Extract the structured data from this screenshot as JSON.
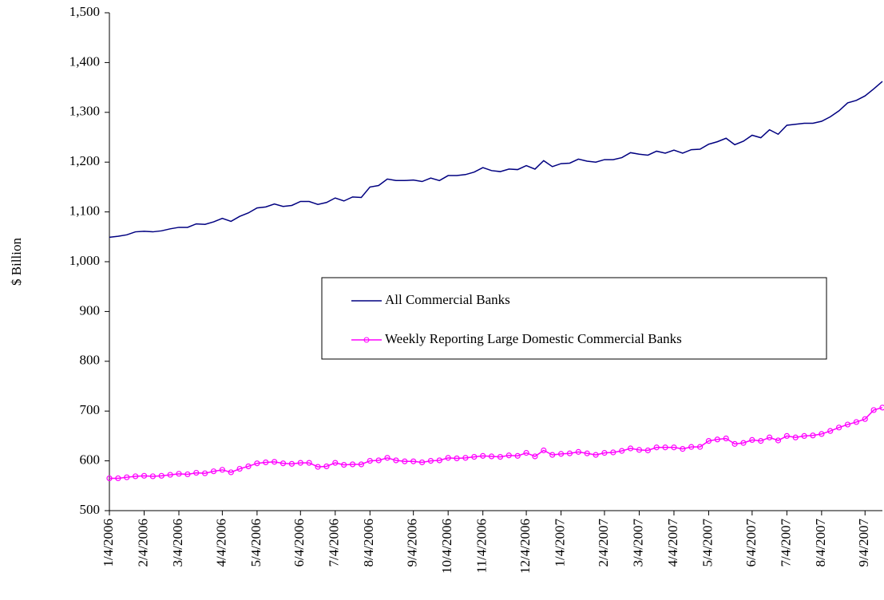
{
  "chart_data": {
    "type": "line",
    "y_label": "$ Billion",
    "categories": [
      "1/4/2006",
      null,
      null,
      null,
      "2/4/2006",
      null,
      null,
      null,
      "3/4/2006",
      null,
      null,
      null,
      null,
      "4/4/2006",
      null,
      null,
      null,
      "5/4/2006",
      null,
      null,
      null,
      null,
      "6/4/2006",
      null,
      null,
      null,
      "7/4/2006",
      null,
      null,
      null,
      "8/4/2006",
      null,
      null,
      null,
      null,
      "9/4/2006",
      null,
      null,
      null,
      "10/4/2006",
      null,
      null,
      null,
      "11/4/2006",
      null,
      null,
      null,
      null,
      "12/4/2006",
      null,
      null,
      null,
      "1/4/2007",
      null,
      null,
      null,
      null,
      "2/4/2007",
      null,
      null,
      null,
      "3/4/2007",
      null,
      null,
      null,
      "4/4/2007",
      null,
      null,
      null,
      "5/4/2007",
      null,
      null,
      null,
      null,
      "6/4/2007",
      null,
      null,
      null,
      "7/4/2007",
      null,
      null,
      null,
      "8/4/2007",
      null,
      null,
      null,
      null,
      "9/4/2007",
      null,
      null
    ],
    "series": [
      {
        "name": "All Commercial Banks",
        "color": "#000080",
        "marker": false,
        "values": [
          1049,
          1051,
          1054,
          1060,
          1061,
          1060,
          1062,
          1066,
          1069,
          1069,
          1076,
          1075,
          1080,
          1087,
          1081,
          1091,
          1098,
          1108,
          1110,
          1116,
          1111,
          1113,
          1121,
          1121,
          1115,
          1119,
          1128,
          1122,
          1130,
          1129,
          1150,
          1153,
          1166,
          1163,
          1163,
          1164,
          1161,
          1168,
          1163,
          1173,
          1173,
          1175,
          1180,
          1189,
          1183,
          1181,
          1186,
          1185,
          1193,
          1186,
          1203,
          1191,
          1197,
          1198,
          1206,
          1202,
          1200,
          1205,
          1205,
          1209,
          1219,
          1216,
          1214,
          1222,
          1218,
          1224,
          1218,
          1225,
          1226,
          1236,
          1241,
          1248,
          1235,
          1242,
          1254,
          1249,
          1265,
          1256,
          1274,
          1276,
          1278,
          1278,
          1282,
          1291,
          1303,
          1319,
          1324,
          1333,
          1347,
          1362
        ]
      },
      {
        "name": "Weekly Reporting Large Domestic Commercial Banks",
        "color": "#ff00ff",
        "marker": true,
        "values": [
          565,
          565,
          567,
          569,
          570,
          569,
          570,
          572,
          574,
          573,
          576,
          575,
          579,
          582,
          577,
          584,
          589,
          595,
          597,
          598,
          595,
          594,
          596,
          596,
          588,
          589,
          596,
          592,
          593,
          593,
          600,
          601,
          606,
          601,
          599,
          599,
          597,
          600,
          601,
          606,
          605,
          606,
          608,
          610,
          609,
          608,
          611,
          610,
          616,
          609,
          621,
          612,
          614,
          615,
          618,
          615,
          612,
          616,
          617,
          620,
          625,
          622,
          621,
          627,
          627,
          627,
          624,
          628,
          628,
          640,
          643,
          645,
          634,
          636,
          642,
          640,
          647,
          641,
          650,
          647,
          650,
          651,
          654,
          660,
          667,
          673,
          678,
          684,
          702,
          707
        ]
      }
    ],
    "ylim": [
      500,
      1500
    ],
    "yticks": [
      500,
      600,
      700,
      800,
      900,
      {
        "value": 1000,
        "label": "1,000"
      },
      {
        "value": 1100,
        "label": "1,100"
      },
      {
        "value": 1200,
        "label": "1,200"
      },
      {
        "value": 1300,
        "label": "1,300"
      },
      {
        "value": 1400,
        "label": "1,400"
      },
      {
        "value": 1500,
        "label": "1,500"
      }
    ],
    "grid": false
  }
}
